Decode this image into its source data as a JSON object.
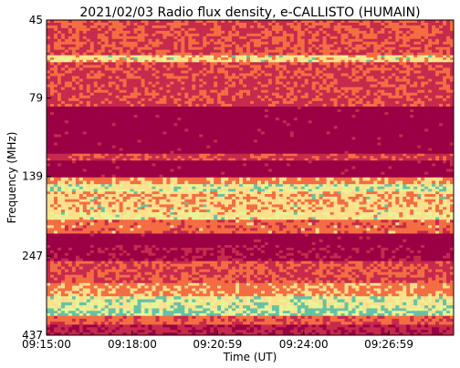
{
  "chart_data": {
    "type": "heatmap",
    "title": "2021/02/03  Radio flux density, e-CALLISTO (HUMAIN)",
    "xlabel": "Time (UT)",
    "ylabel": "Frequency (MHz)",
    "x_ticks": [
      "09:15:00",
      "09:18:00",
      "09:20:59",
      "09:24:00",
      "09:26:59"
    ],
    "y_ticks": [
      "45",
      "79",
      "139",
      "247",
      "437"
    ],
    "x_range": [
      "09:15:00",
      "09:29:15"
    ],
    "y_range": [
      45,
      437
    ],
    "y_scale": "log",
    "y_inverted": true,
    "colormap": "Spectral_r",
    "colors": {
      "background_band": "#9b0045",
      "low": "#c72a4c",
      "mid": "#f46d43",
      "high": "#fee08b",
      "peak": "#e6f598",
      "extreme": "#66c2a5"
    },
    "bands": [
      {
        "f_start": 45,
        "f_end": 58,
        "level": 0.35,
        "note": "noisy"
      },
      {
        "f_start": 58,
        "f_end": 61,
        "level": 0.7,
        "note": "persistent bright line"
      },
      {
        "f_start": 61,
        "f_end": 84,
        "level": 0.3,
        "note": "noisy"
      },
      {
        "f_start": 84,
        "f_end": 118,
        "level": 0.0
      },
      {
        "f_start": 118,
        "f_end": 124,
        "level": 0.3
      },
      {
        "f_start": 124,
        "f_end": 140,
        "level": 0.0
      },
      {
        "f_start": 140,
        "f_end": 147,
        "level": 0.55
      },
      {
        "f_start": 147,
        "f_end": 155,
        "level": 0.85,
        "note": "bright"
      },
      {
        "f_start": 155,
        "f_end": 180,
        "level": 0.65
      },
      {
        "f_start": 180,
        "f_end": 190,
        "level": 0.75
      },
      {
        "f_start": 190,
        "f_end": 210,
        "level": 0.45
      },
      {
        "f_start": 210,
        "f_end": 228,
        "level": 0.0
      },
      {
        "f_start": 228,
        "f_end": 256,
        "level": 0.05
      },
      {
        "f_start": 256,
        "f_end": 300,
        "level": 0.35
      },
      {
        "f_start": 300,
        "f_end": 330,
        "level": 0.55
      },
      {
        "f_start": 330,
        "f_end": 360,
        "level": 0.85,
        "note": "bright with bursts"
      },
      {
        "f_start": 360,
        "f_end": 380,
        "level": 0.95,
        "note": "brightest"
      },
      {
        "f_start": 380,
        "f_end": 405,
        "level": 0.4
      },
      {
        "f_start": 405,
        "f_end": 437,
        "level": 0.15
      }
    ]
  }
}
